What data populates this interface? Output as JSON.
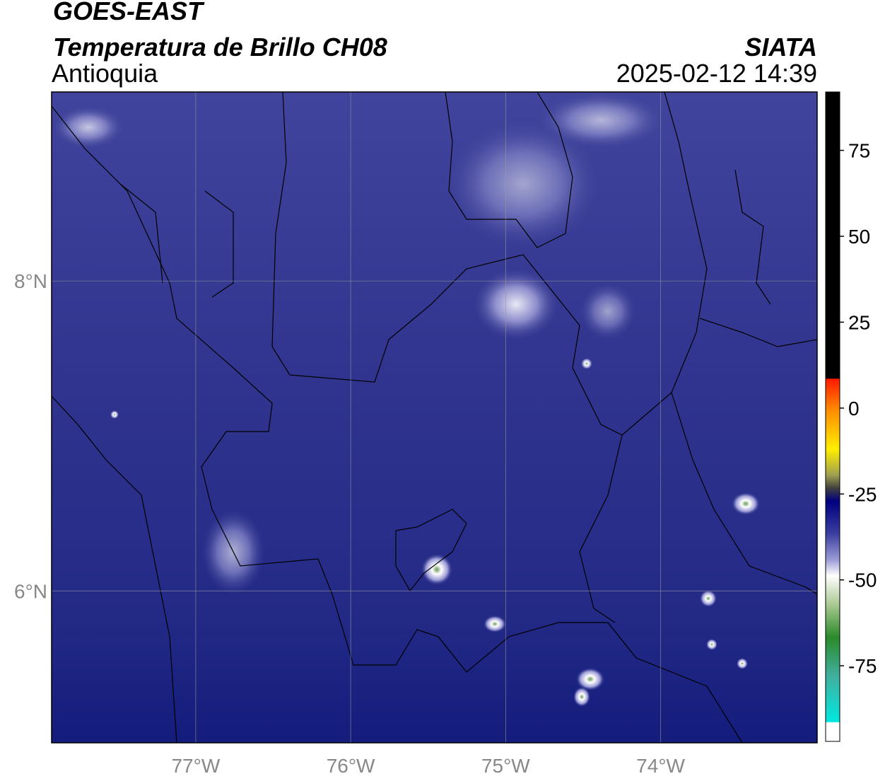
{
  "header": {
    "title": "GOES-EAST",
    "subtitle": "Temperatura de Brillo CH08",
    "region": "Antioquia",
    "source": "SIATA",
    "datetime": "2025-02-12 14:39"
  },
  "map": {
    "xlim": [
      -77.93,
      -72.99
    ],
    "ylim": [
      5.02,
      9.22
    ],
    "xticks": [
      {
        "value": -77,
        "label": "77°W"
      },
      {
        "value": -76,
        "label": "76°W"
      },
      {
        "value": -75,
        "label": "75°W"
      },
      {
        "value": -74,
        "label": "74°W"
      }
    ],
    "yticks": [
      {
        "value": 8,
        "label": "8°N"
      },
      {
        "value": 6,
        "label": "6°N"
      }
    ],
    "grid": true
  },
  "colorbar": {
    "lim": [
      -97,
      92
    ],
    "ticks": [
      75,
      50,
      25,
      0,
      -25,
      -50,
      -75
    ]
  }
}
